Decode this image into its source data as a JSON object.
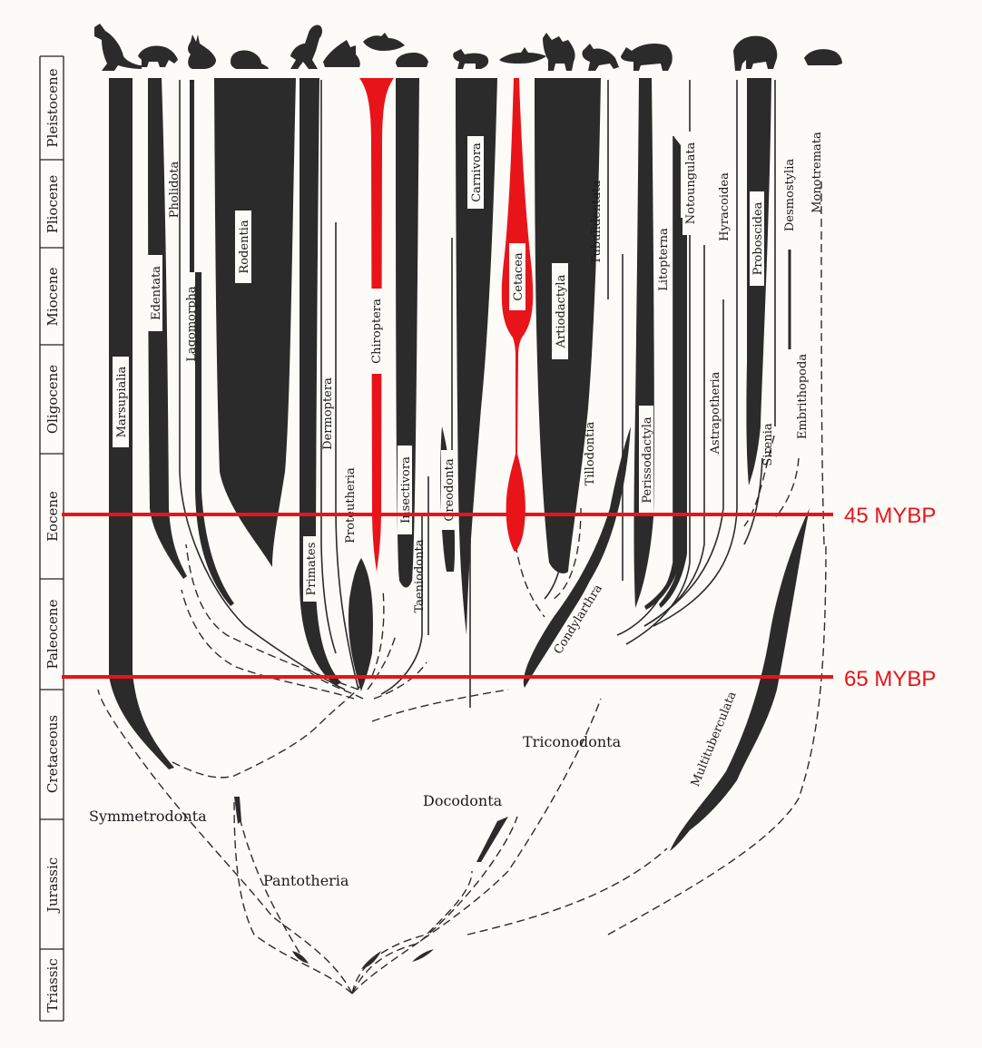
{
  "colors": {
    "lineage": "#2b2b2b",
    "highlight": "#e8141a",
    "paper": "#fcfbf7"
  },
  "epochs": [
    "Pleistocene",
    "Pliocene",
    "Miocene",
    "Oligocene",
    "Eocene",
    "Paleocene",
    "Cretaceous",
    "Jurassic",
    "Triassic"
  ],
  "markers": {
    "m45": "45 MYBP",
    "m65": "65 MYBP"
  },
  "taxa": {
    "marsupialia": "Marsupialia",
    "edentata": "Edentata",
    "pholidota": "Pholidota",
    "lagomorpha": "Lagomorpha",
    "rodentia": "Rodentia",
    "primates": "Primates",
    "dermoptera": "Dermoptera",
    "proteutheria": "Proteutheria",
    "chiroptera": "Chiroptera",
    "insectivora": "Insectivora",
    "taeniodonta": "Taeniodonta",
    "creodonta": "Creodonta",
    "carnivora": "Carnivora",
    "cetacea": "Cetacea",
    "artiodactyla": "Artiodactyla",
    "tillodontia": "Tillodontia",
    "tubulidentata": "Tubulidentata",
    "condylarthra": "Condylarthra",
    "perissodactyla": "Perissodactyla",
    "litopterna": "Litopterna",
    "notoungulata": "Notoungulata",
    "astrapotheria": "Astrapotheria",
    "hyracoidea": "Hyracoidea",
    "proboscidea": "Proboscidea",
    "sirenia": "Sirenia",
    "desmostylia": "Desmostylia",
    "embrithopoda": "Embrithopoda",
    "monotremata": "Monotremata",
    "multituberculata": "Multituberculata",
    "symmetrodonta": "Symmetrodonta",
    "pantotheria": "Pantotheria",
    "docodonta": "Docodonta",
    "triconodonta": "Triconodonta"
  },
  "icons": [
    "kangaroo-icon",
    "armadillo-icon",
    "rabbit-icon",
    "mouse-icon",
    "monkey-icon",
    "colugo-icon",
    "bat-icon",
    "shrew-icon",
    "cat-icon",
    "dolphin-icon",
    "ox-icon",
    "aardvark-icon",
    "rhinoceros-icon",
    "elephant-icon",
    "platypus-icon"
  ]
}
